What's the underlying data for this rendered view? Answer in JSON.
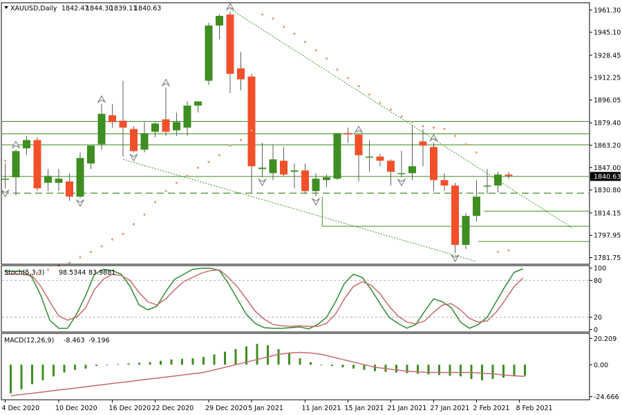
{
  "chart_data": [
    {
      "type": "candlestick",
      "title": "XAUUSD,Daily",
      "ohlc_header": [
        "1842.47",
        "1844.30",
        "1839.11",
        "1840.63"
      ],
      "y_ticks": [
        "1961.30",
        "1945.10",
        "1928.45",
        "1912.25",
        "1896.05",
        "1879.40",
        "1863.20",
        "1847.00",
        "1830.80",
        "1814.15",
        "1797.95",
        "1781.75"
      ],
      "ylim": [
        1777,
        1966
      ],
      "last_price": "1840.63",
      "colors": {
        "bull": "#3e8e21",
        "bear": "#f2502a",
        "wick": "#5a5a5a",
        "level": "#3e8e21"
      },
      "candles": [
        {
          "o": 1839,
          "h": 1850,
          "l": 1832,
          "c": 1839
        },
        {
          "o": 1840,
          "h": 1860,
          "l": 1827,
          "c": 1859
        },
        {
          "o": 1861,
          "h": 1870,
          "l": 1856,
          "c": 1867
        },
        {
          "o": 1867,
          "h": 1869,
          "l": 1830,
          "c": 1832
        },
        {
          "o": 1836,
          "h": 1846,
          "l": 1830,
          "c": 1841
        },
        {
          "o": 1836,
          "h": 1846,
          "l": 1830,
          "c": 1839
        },
        {
          "o": 1837,
          "h": 1843,
          "l": 1823,
          "c": 1826
        },
        {
          "o": 1826,
          "h": 1858,
          "l": 1825,
          "c": 1854
        },
        {
          "o": 1850,
          "h": 1863,
          "l": 1846,
          "c": 1863
        },
        {
          "o": 1864,
          "h": 1893,
          "l": 1860,
          "c": 1886
        },
        {
          "o": 1885,
          "h": 1893,
          "l": 1876,
          "c": 1880
        },
        {
          "o": 1881,
          "h": 1910,
          "l": 1855,
          "c": 1876
        },
        {
          "o": 1875,
          "h": 1877,
          "l": 1858,
          "c": 1859
        },
        {
          "o": 1860,
          "h": 1880,
          "l": 1858,
          "c": 1872
        },
        {
          "o": 1873,
          "h": 1880,
          "l": 1869,
          "c": 1879
        },
        {
          "o": 1882,
          "h": 1905,
          "l": 1870,
          "c": 1873
        },
        {
          "o": 1874,
          "h": 1887,
          "l": 1870,
          "c": 1880
        },
        {
          "o": 1876,
          "h": 1895,
          "l": 1870,
          "c": 1892
        },
        {
          "o": 1892,
          "h": 1894,
          "l": 1887,
          "c": 1895
        },
        {
          "o": 1910,
          "h": 1952,
          "l": 1907,
          "c": 1950
        },
        {
          "o": 1950,
          "h": 1958,
          "l": 1940,
          "c": 1957
        },
        {
          "o": 1958,
          "h": 1960,
          "l": 1901,
          "c": 1915
        },
        {
          "o": 1919,
          "h": 1931,
          "l": 1903,
          "c": 1911
        },
        {
          "o": 1913,
          "h": 1915,
          "l": 1828,
          "c": 1848
        },
        {
          "o": 1846,
          "h": 1865,
          "l": 1840,
          "c": 1847
        },
        {
          "o": 1843,
          "h": 1864,
          "l": 1838,
          "c": 1853
        },
        {
          "o": 1852,
          "h": 1862,
          "l": 1841,
          "c": 1842
        },
        {
          "o": 1844,
          "h": 1850,
          "l": 1832,
          "c": 1845
        },
        {
          "o": 1845,
          "h": 1850,
          "l": 1828,
          "c": 1830
        },
        {
          "o": 1830,
          "h": 1843,
          "l": 1826,
          "c": 1839
        },
        {
          "o": 1838,
          "h": 1842,
          "l": 1833,
          "c": 1840
        },
        {
          "o": 1839,
          "h": 1872,
          "l": 1838,
          "c": 1872
        },
        {
          "o": 1872,
          "h": 1876,
          "l": 1865,
          "c": 1871
        },
        {
          "o": 1871,
          "h": 1871,
          "l": 1837,
          "c": 1856
        },
        {
          "o": 1855,
          "h": 1867,
          "l": 1844,
          "c": 1855
        },
        {
          "o": 1855,
          "h": 1857,
          "l": 1848,
          "c": 1852
        },
        {
          "o": 1852,
          "h": 1853,
          "l": 1834,
          "c": 1844
        },
        {
          "o": 1843,
          "h": 1859,
          "l": 1840,
          "c": 1843
        },
        {
          "o": 1843,
          "h": 1878,
          "l": 1838,
          "c": 1848
        },
        {
          "o": 1866,
          "h": 1875,
          "l": 1848,
          "c": 1863
        },
        {
          "o": 1862,
          "h": 1865,
          "l": 1830,
          "c": 1838
        },
        {
          "o": 1838,
          "h": 1843,
          "l": 1830,
          "c": 1834
        },
        {
          "o": 1834,
          "h": 1836,
          "l": 1785,
          "c": 1791
        },
        {
          "o": 1791,
          "h": 1814,
          "l": 1788,
          "c": 1812
        },
        {
          "o": 1812,
          "h": 1838,
          "l": 1808,
          "c": 1826
        },
        {
          "o": 1834,
          "h": 1846,
          "l": 1828,
          "c": 1834
        },
        {
          "o": 1834,
          "h": 1844,
          "l": 1829,
          "c": 1842
        },
        {
          "o": 1842,
          "h": 1844,
          "l": 1839,
          "c": 1841
        }
      ],
      "parabolic_sar": [
        {
          "i": 0,
          "v": 1852
        },
        {
          "i": 3,
          "v": 1771
        },
        {
          "i": 4,
          "v": 1773
        },
        {
          "i": 5,
          "v": 1776
        },
        {
          "i": 6,
          "v": 1778
        },
        {
          "i": 7,
          "v": 1782
        },
        {
          "i": 8,
          "v": 1786
        },
        {
          "i": 9,
          "v": 1790
        },
        {
          "i": 10,
          "v": 1795
        },
        {
          "i": 11,
          "v": 1799
        },
        {
          "i": 12,
          "v": 1806
        },
        {
          "i": 13,
          "v": 1813
        },
        {
          "i": 14,
          "v": 1822
        },
        {
          "i": 15,
          "v": 1830
        },
        {
          "i": 16,
          "v": 1836
        },
        {
          "i": 17,
          "v": 1841
        },
        {
          "i": 18,
          "v": 1847
        },
        {
          "i": 19,
          "v": 1851
        },
        {
          "i": 20,
          "v": 1856
        },
        {
          "i": 21,
          "v": 1863
        },
        {
          "i": 22,
          "v": 1867
        },
        {
          "i": 23,
          "v": 1874
        },
        {
          "i": 24,
          "v": 1958
        },
        {
          "i": 25,
          "v": 1955
        },
        {
          "i": 26,
          "v": 1949
        },
        {
          "i": 27,
          "v": 1944
        },
        {
          "i": 28,
          "v": 1938
        },
        {
          "i": 29,
          "v": 1932
        },
        {
          "i": 30,
          "v": 1926
        },
        {
          "i": 31,
          "v": 1918
        },
        {
          "i": 32,
          "v": 1912
        },
        {
          "i": 33,
          "v": 1906
        },
        {
          "i": 34,
          "v": 1900
        },
        {
          "i": 35,
          "v": 1894
        },
        {
          "i": 36,
          "v": 1889
        },
        {
          "i": 37,
          "v": 1884
        },
        {
          "i": 38,
          "v": 1880
        },
        {
          "i": 39,
          "v": 1877
        },
        {
          "i": 40,
          "v": 1876
        },
        {
          "i": 41,
          "v": 1875
        },
        {
          "i": 42,
          "v": 1870
        },
        {
          "i": 43,
          "v": 1864
        },
        {
          "i": 44,
          "v": 1858
        },
        {
          "i": 46,
          "v": 1786
        },
        {
          "i": 47,
          "v": 1787
        }
      ],
      "fractals_up": [
        1,
        9,
        15,
        21,
        33,
        40
      ],
      "fractals_down": [
        0,
        7,
        12,
        24,
        29,
        37,
        42
      ],
      "horizontal_levels": [
        1880.5,
        1871.5,
        1863.5,
        1815.5,
        1804.5,
        1793.5
      ],
      "dashed_level": 1828.5,
      "trendlines": [
        {
          "from": {
            "i": 21,
            "v": 1962
          },
          "to": {
            "i": 53,
            "v": 1803
          }
        },
        {
          "from": {
            "i": 11,
            "v": 1853
          },
          "to": {
            "i": 44,
            "v": 1779
          }
        }
      ]
    },
    {
      "type": "line",
      "title": "Stoch(5,3,3)",
      "values_header": [
        "98.5344",
        "83.9881"
      ],
      "y_ticks": [
        "100",
        "80",
        "20",
        "0"
      ],
      "ylim": [
        -3,
        103
      ],
      "levels": [
        80,
        20
      ],
      "series": [
        {
          "color": "#2e8b2e",
          "values": [
            95,
            95,
            95,
            85,
            55,
            15,
            2,
            2,
            25,
            55,
            90,
            98,
            96,
            90,
            70,
            40,
            32,
            38,
            62,
            82,
            90,
            98,
            100,
            100,
            96,
            75,
            50,
            25,
            10,
            3,
            2,
            2,
            3,
            4,
            1,
            8,
            20,
            45,
            75,
            90,
            85,
            65,
            42,
            20,
            10,
            2,
            8,
            30,
            50,
            45,
            35,
            12,
            2,
            8,
            20,
            45,
            70,
            93,
            99
          ]
        },
        {
          "color": "#c76a6a",
          "values": [
            90,
            90,
            90,
            88,
            70,
            45,
            22,
            15,
            20,
            35,
            65,
            82,
            90,
            88,
            80,
            60,
            45,
            40,
            50,
            65,
            78,
            85,
            92,
            96,
            97,
            85,
            70,
            50,
            30,
            17,
            8,
            6,
            5,
            6,
            5,
            5,
            10,
            25,
            50,
            70,
            78,
            72,
            58,
            38,
            22,
            12,
            9,
            14,
            28,
            40,
            42,
            32,
            18,
            12,
            14,
            28,
            48,
            70,
            84
          ]
        }
      ]
    },
    {
      "type": "bar",
      "title": "MACD(12,26,9)",
      "values_header": [
        "-8.463",
        "-9.196"
      ],
      "y_ticks": [
        "20.209",
        "0.00",
        "-24.666"
      ],
      "ylim": [
        -26.5,
        22
      ],
      "histogram_color": "#3e8e21",
      "signal_color": "#c76a6a",
      "histogram": [
        -22,
        -19,
        -15,
        -12,
        -9,
        -6,
        -4,
        -3,
        -1,
        0,
        0.5,
        1,
        1.5,
        2,
        3,
        4,
        4.5,
        5,
        6,
        8,
        10,
        12,
        14,
        16,
        15,
        12,
        9,
        5,
        2,
        0,
        -1,
        -2,
        -3,
        -4,
        -5,
        -5.5,
        -6,
        -6.5,
        -7,
        -7.5,
        -8,
        -8.5,
        -9,
        -11,
        -12,
        -11,
        -10,
        -9,
        -8.5
      ],
      "signal": [
        -24,
        -23,
        -22,
        -21,
        -20,
        -19,
        -18,
        -17,
        -16,
        -15,
        -14,
        -13,
        -12,
        -11,
        -10,
        -9,
        -8,
        -7,
        -6,
        -4,
        -2,
        0,
        2,
        4,
        6,
        8,
        9,
        9.5,
        9,
        8,
        6,
        4,
        2,
        0,
        -2,
        -3,
        -4,
        -5,
        -5.5,
        -6,
        -6,
        -6,
        -6,
        -6,
        -6.5,
        -7,
        -8,
        -8.5,
        -9
      ]
    }
  ],
  "x_ticks": [
    {
      "i": 0,
      "label": "4 Dec 2020"
    },
    {
      "i": 5,
      "label": "10 Dec 2020"
    },
    {
      "i": 10,
      "label": "16 Dec 2020"
    },
    {
      "i": 14,
      "label": "22 Dec 2020"
    },
    {
      "i": 19,
      "label": "29 Dec 2020"
    },
    {
      "i": 23,
      "label": "5 Jan 2021"
    },
    {
      "i": 28,
      "label": "11 Jan 2021"
    },
    {
      "i": 32,
      "label": "15 Jan 2021"
    },
    {
      "i": 36,
      "label": "21 Jan 2021"
    },
    {
      "i": 40,
      "label": "27 Jan 2021"
    },
    {
      "i": 44,
      "label": "2 Feb 2021"
    },
    {
      "i": 48,
      "label": "8 Feb 2021"
    }
  ]
}
